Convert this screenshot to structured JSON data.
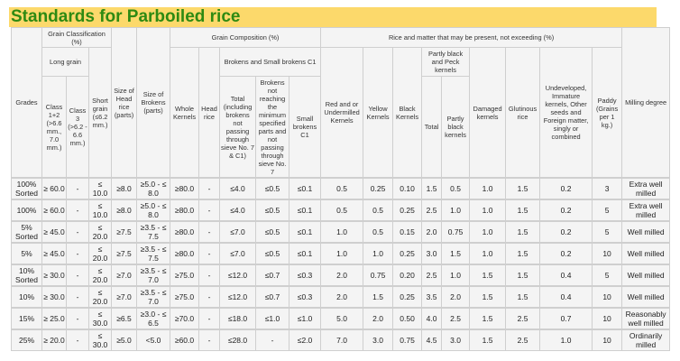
{
  "title": "Standards for Parboiled rice",
  "colors": {
    "title_bg": "#fcd96b",
    "title_text": "#2e8a12",
    "symbol": "#e8642c"
  },
  "headers": {
    "grades": "Grades",
    "grain_classification": "Grain Classification (%)",
    "long_grain": "Long grain",
    "class_1_2": "Class 1+2 (>6.6 mm., 7.0 mm.)",
    "class_3": "Class 3 (>6.2 - 6.6 mm.)",
    "short_grain": "Short grain (≤6.2 mm.)",
    "size_head_rice": "Size of Head rice (parts)",
    "size_brokens": "Size of Brokens (parts)",
    "grain_composition": "Grain Composition (%)",
    "whole_kernels": "Whole Kernels",
    "head_rice": "Head rice",
    "brokens_small_brokens": "Brokens and Small brokens C1",
    "total_brokens": "Total (including brokens not passing through sieve No. 7 & C1)",
    "brokens_not_reaching": "Brokens not reaching the minimum specified parts and not passing through sieve No. 7",
    "small_brokens": "Small brokens C1",
    "rice_matter": "Rice and matter that may be present, not exceeding (%)",
    "red_kernels": "Red and or Undermilled Kernels",
    "yellow_kernels": "Yellow Kernels",
    "black_kernels": "Black Kernels",
    "partly_black_peck": "Partly black and Peck kernels",
    "pb_total": "Total",
    "pb_partly_black": "Partly black kernels",
    "damaged_kernels": "Damaged kernels",
    "glutinous_rice": "Glutinous rice",
    "undeveloped": "Undeveloped, Immature kernels, Other seeds and Foreign matter, singly or combined",
    "paddy": "Paddy (Grains per 1 kg.)",
    "milling_degree": "Milling degree"
  },
  "rows": [
    [
      "100% Sorted",
      "≥ 60.0",
      "-",
      "≤ 10.0",
      "≥8.0",
      "≥5.0 - ≤ 8.0",
      "≥80.0",
      "-",
      "≤4.0",
      "≤0.5",
      "≤0.1",
      "0.5",
      "0.25",
      "0.10",
      "1.5",
      "0.5",
      "1.0",
      "1.5",
      "0.2",
      "3",
      "Extra well milled"
    ],
    [
      "100%",
      "≥ 60.0",
      "-",
      "≤ 10.0",
      "≥8.0",
      "≥5.0 - ≤ 8.0",
      "≥80.0",
      "-",
      "≤4.0",
      "≤0.5",
      "≤0.1",
      "0.5",
      "0.5",
      "0.25",
      "2.5",
      "1.0",
      "1.0",
      "1.5",
      "0.2",
      "5",
      "Extra well milled"
    ],
    [
      "5% Sorted",
      "≥ 45.0",
      "-",
      "≤ 20.0",
      "≥7.5",
      "≥3.5 - ≤ 7.5",
      "≥80.0",
      "-",
      "≤7.0",
      "≤0.5",
      "≤0.1",
      "1.0",
      "0.5",
      "0.15",
      "2.0",
      "0.75",
      "1.0",
      "1.5",
      "0.2",
      "5",
      "Well milled"
    ],
    [
      "5%",
      "≥ 45.0",
      "-",
      "≤ 20.0",
      "≥7.5",
      "≥3.5 - ≤ 7.5",
      "≥80.0",
      "-",
      "≤7.0",
      "≤0.5",
      "≤0.1",
      "1.0",
      "1.0",
      "0.25",
      "3.0",
      "1.5",
      "1.0",
      "1.5",
      "0.2",
      "10",
      "Well milled"
    ],
    [
      "10% Sorted",
      "≥ 30.0",
      "-",
      "≤ 20.0",
      "≥7.0",
      "≥3.5 - ≤ 7.0",
      "≥75.0",
      "-",
      "≤12.0",
      "≤0.7",
      "≤0.3",
      "2.0",
      "0.75",
      "0.20",
      "2.5",
      "1.0",
      "1.5",
      "1.5",
      "0.4",
      "5",
      "Well milled"
    ],
    [
      "10%",
      "≥ 30.0",
      "-",
      "≤ 20.0",
      "≥7.0",
      "≥3.5 - ≤ 7.0",
      "≥75.0",
      "-",
      "≤12.0",
      "≤0.7",
      "≤0.3",
      "2.0",
      "1.5",
      "0.25",
      "3.5",
      "2.0",
      "1.5",
      "1.5",
      "0.4",
      "10",
      "Well milled"
    ],
    [
      "15%",
      "≥ 25.0",
      "-",
      "≤ 30.0",
      "≥6.5",
      "≥3.0 - ≤ 6.5",
      "≥70.0",
      "-",
      "≤18.0",
      "≤1.0",
      "≤1.0",
      "5.0",
      "2.0",
      "0.50",
      "4.0",
      "2.5",
      "1.5",
      "2.5",
      "0.7",
      "10",
      "Reasonably well milled"
    ],
    [
      "25%",
      "≥ 20.0",
      "-",
      "≤ 30.0",
      "≥5.0",
      "<5.0",
      "≥60.0",
      "-",
      "≤28.0",
      "-",
      "≤2.0",
      "7.0",
      "3.0",
      "0.75",
      "4.5",
      "3.0",
      "1.5",
      "2.5",
      "1.0",
      "10",
      "Ordinarily milled"
    ]
  ]
}
